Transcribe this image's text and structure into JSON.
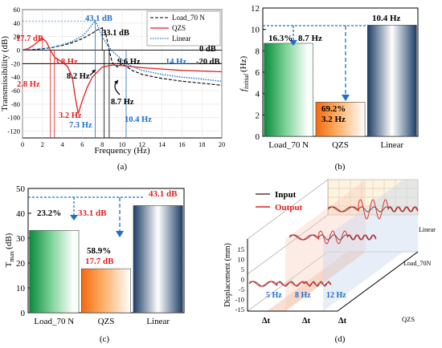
{
  "colors": {
    "load": "#000000",
    "qzs": "#e41e1e",
    "linear": "#1f6fc8",
    "bar_load_dark": "#0a8a3a",
    "bar_qzs_dark": "#f06a10",
    "bar_linear_dark": "#1d3e66"
  },
  "panel_a": {
    "caption": "(a)",
    "chart_data": {
      "type": "line",
      "xlabel": "Frequency (Hz)",
      "ylabel": "Transmissibility (dB)",
      "xlim": [
        0,
        20
      ],
      "ylim": [
        -130,
        60
      ],
      "xticks": [
        "0",
        "2",
        "4",
        "6",
        "8",
        "10",
        "12",
        "14",
        "16",
        "18",
        "20"
      ],
      "yticks": [
        "60",
        "40",
        "20",
        "0",
        "-20",
        "-40",
        "-60",
        "-80",
        "-100",
        "-120"
      ],
      "legend": [
        "Load_70 N",
        "QZS",
        "Linear"
      ],
      "reference_lines": [
        0,
        -20
      ],
      "series": [
        {
          "name": "Load_70 N",
          "x": [
            0,
            1,
            2,
            3,
            4,
            5,
            6,
            7,
            7.5,
            8,
            8.3,
            8.7,
            9,
            9.5,
            10,
            11,
            12,
            14,
            16,
            18,
            20
          ],
          "y": [
            0,
            0.5,
            2,
            4,
            7,
            11,
            17,
            25,
            30,
            33.1,
            28,
            0,
            -18,
            -25,
            -20,
            -30,
            -36,
            -42,
            -46,
            -49,
            -52
          ]
        },
        {
          "name": "QZS",
          "x": [
            0,
            0.5,
            1,
            1.5,
            2,
            2.4,
            2.8,
            3.2,
            3.6,
            4,
            4.5,
            5,
            5.3,
            5.6,
            6,
            6.5,
            7,
            8,
            9,
            10,
            12,
            14,
            16,
            18,
            20
          ],
          "y": [
            0,
            2,
            6,
            12,
            17.7,
            12,
            0,
            -10,
            -14,
            -18,
            -24,
            -40,
            -70,
            -94,
            -75,
            -55,
            -40,
            -25,
            -22,
            -23,
            -26,
            -28,
            -30,
            -31,
            -32
          ]
        },
        {
          "name": "Linear",
          "x": [
            0,
            1,
            2,
            3,
            4,
            5,
            6,
            6.5,
            7,
            7.3,
            7.6,
            8,
            8.5,
            9,
            9.5,
            10,
            10.4,
            11,
            12,
            14,
            16,
            18,
            20
          ],
          "y": [
            0,
            1,
            2,
            4,
            8,
            13,
            21,
            28,
            38,
            43.1,
            35,
            20,
            8,
            -1,
            -8,
            -14,
            -20,
            -24,
            -30,
            -36,
            -40,
            -43,
            -46
          ]
        }
      ],
      "annotations": [
        "43.1 dB",
        "33.1 dB",
        "17.7 dB",
        "0 dB",
        "-20 dB",
        "3.8 Hz",
        "9.6 Hz",
        "14 Hz",
        "2.8 Hz",
        "8.2 Hz",
        "3.2 Hz",
        "7.3 Hz",
        "8.7 Hz",
        "10.4 Hz"
      ]
    }
  },
  "panel_b": {
    "caption": "(b)",
    "chart_data": {
      "type": "bar",
      "categories": [
        "Load_70 N",
        "QZS",
        "Linear"
      ],
      "values": [
        8.7,
        3.2,
        10.4
      ],
      "ylabel_main": "f",
      "ylabel_sub": "initial",
      "ylabel_unit": "(Hz)",
      "ylim": [
        0,
        12
      ],
      "yticks": [
        "0",
        "2",
        "4",
        "6",
        "8",
        "10",
        "12"
      ],
      "labels": {
        "load_pct": "16.3%",
        "load_val": "8.7 Hz",
        "qzs_pct": "69.2%",
        "qzs_val": "3.2 Hz",
        "linear_val": "10.4 Hz"
      }
    }
  },
  "panel_c": {
    "caption": "(c)",
    "chart_data": {
      "type": "bar",
      "categories": [
        "Load_70 N",
        "QZS",
        "Linear"
      ],
      "values": [
        33.1,
        17.7,
        43.1
      ],
      "ylabel_main": "T",
      "ylabel_sub": "max",
      "ylabel_unit": "(dB)",
      "ylim": [
        0,
        50
      ],
      "yticks": [
        "0",
        "10",
        "20",
        "30",
        "40",
        "50"
      ],
      "labels": {
        "load_pct": "23.2%",
        "load_val": "33.1 dB",
        "qzs_pct": "58.9%",
        "qzs_val": "17.7 dB",
        "linear_val": "43.1 dB"
      }
    }
  },
  "panel_d": {
    "caption": "(d)",
    "legend_input": "Input",
    "legend_output": "Output",
    "zlabel": "Displacement (mm)",
    "zticks": [
      "15",
      "10",
      "5",
      "0",
      "-5",
      "-10",
      "-15"
    ],
    "freq_labels": [
      "5 Hz",
      "8 Hz",
      "12 Hz"
    ],
    "dt_labels": [
      "Δt",
      "Δt",
      "Δt"
    ],
    "depth_labels": [
      "Linear",
      "Load_70N",
      "QZS"
    ]
  }
}
